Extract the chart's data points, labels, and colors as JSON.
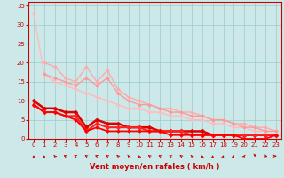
{
  "xlabel": "Vent moyen/en rafales ( km/h )",
  "xlim": [
    -0.5,
    23.5
  ],
  "ylim": [
    0,
    36
  ],
  "yticks": [
    0,
    5,
    10,
    15,
    20,
    25,
    30,
    35
  ],
  "xticks": [
    0,
    1,
    2,
    3,
    4,
    5,
    6,
    7,
    8,
    9,
    10,
    11,
    12,
    13,
    14,
    15,
    16,
    17,
    18,
    19,
    20,
    21,
    22,
    23
  ],
  "bg_color": "#cce8e8",
  "grid_color": "#99cccc",
  "lines": [
    {
      "x": [
        0,
        1,
        2,
        3,
        4,
        5,
        6,
        7,
        8,
        9,
        10,
        11,
        12,
        13,
        14,
        15,
        16,
        17,
        18,
        19,
        20,
        21,
        22,
        23
      ],
      "y": [
        33,
        17,
        15,
        14,
        13,
        12,
        11,
        10,
        9,
        8,
        8,
        7,
        7,
        6,
        6,
        5,
        5,
        4,
        4,
        3,
        3,
        2,
        2,
        2
      ],
      "color": "#ffbbbb",
      "lw": 1.0,
      "marker": "D",
      "ms": 2.0
    },
    {
      "x": [
        1,
        2,
        3,
        4,
        5,
        6,
        7,
        8,
        9,
        10,
        11,
        12,
        13,
        14,
        15,
        16,
        17,
        18,
        19,
        20,
        21,
        22,
        23
      ],
      "y": [
        20,
        19,
        16,
        15,
        19,
        15,
        18,
        13,
        11,
        10,
        9,
        8,
        8,
        7,
        7,
        6,
        5,
        5,
        4,
        4,
        3,
        3,
        2
      ],
      "color": "#ffaaaa",
      "lw": 1.0,
      "marker": "D",
      "ms": 2.0
    },
    {
      "x": [
        1,
        2,
        3,
        4,
        5,
        6,
        7,
        8,
        9,
        10,
        11,
        12,
        13,
        14,
        15,
        16,
        17,
        18,
        19,
        20,
        21,
        22,
        23
      ],
      "y": [
        17,
        16,
        15,
        14,
        16,
        14,
        16,
        12,
        10,
        9,
        9,
        8,
        7,
        7,
        6,
        6,
        5,
        5,
        4,
        3,
        3,
        2,
        2
      ],
      "color": "#ff9999",
      "lw": 1.0,
      "marker": "D",
      "ms": 2.0
    },
    {
      "x": [
        0,
        1,
        2,
        3,
        4,
        5,
        6,
        7,
        8,
        9,
        10,
        11,
        12,
        13,
        14,
        15,
        16,
        17,
        18,
        19,
        20,
        21,
        22,
        23
      ],
      "y": [
        10,
        8,
        8,
        7,
        7,
        3,
        5,
        4,
        4,
        3,
        3,
        3,
        2,
        2,
        2,
        2,
        2,
        1,
        1,
        1,
        1,
        1,
        1,
        1
      ],
      "color": "#dd0000",
      "lw": 1.8,
      "marker": "D",
      "ms": 2.5
    },
    {
      "x": [
        0,
        1,
        2,
        3,
        4,
        5,
        6,
        7,
        8,
        9,
        10,
        11,
        12,
        13,
        14,
        15,
        16,
        17,
        18,
        19,
        20,
        21,
        22,
        23
      ],
      "y": [
        9,
        7,
        7,
        6,
        6,
        2,
        4,
        3,
        3,
        3,
        3,
        2,
        2,
        2,
        2,
        1,
        1,
        1,
        1,
        1,
        1,
        1,
        1,
        1
      ],
      "color": "#ff2222",
      "lw": 1.5,
      "marker": "D",
      "ms": 2.5
    },
    {
      "x": [
        0,
        1,
        2,
        3,
        4,
        5,
        6,
        7,
        8,
        9,
        10,
        11,
        12,
        13,
        14,
        15,
        16,
        17,
        18,
        19,
        20,
        21,
        22,
        23
      ],
      "y": [
        9,
        7,
        7,
        6,
        5,
        2,
        3,
        2,
        2,
        2,
        2,
        2,
        2,
        1,
        1,
        1,
        1,
        1,
        1,
        1,
        0,
        0,
        0,
        1
      ],
      "color": "#ff0000",
      "lw": 1.3,
      "marker": "D",
      "ms": 2.0
    }
  ],
  "arrow_color": "#cc0000",
  "arrow_angles_deg": [
    180,
    180,
    200,
    220,
    225,
    215,
    225,
    215,
    205,
    195,
    190,
    210,
    220,
    215,
    210,
    200,
    185,
    178,
    172,
    168,
    163,
    0,
    50,
    90
  ]
}
